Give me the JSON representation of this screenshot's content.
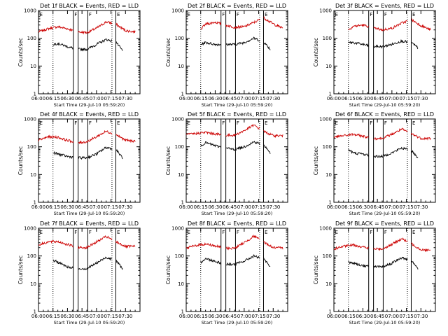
{
  "chart_data": [
    {
      "type": "line",
      "title": "Det 1f BLACK = Events, RED = LLD",
      "xlabel": "Start Time (29-Jul-10 05:59:20)",
      "ylabel": "Counts/sec",
      "y_scale": "log",
      "ylim": [
        1,
        1000
      ],
      "xlim": [
        "06:00",
        "07:45"
      ],
      "x_ticks": [
        "06:00",
        "06:15",
        "06:30",
        "06:45",
        "07:00",
        "07:15",
        "07:30"
      ],
      "y_ticks": [
        "1",
        "10",
        "100",
        "1000"
      ],
      "flags": [
        "E",
        "F",
        "F",
        "E"
      ],
      "vertical_markers": [
        "06:15",
        "06:36",
        "06:41",
        "06:51",
        "07:16",
        "07:20"
      ],
      "dotted_markers": [
        "06:15",
        "07:16"
      ],
      "series": [
        {
          "name": "LLD",
          "color": "#cc0000",
          "x": [
            "06:00",
            "06:10",
            "06:20",
            "06:30",
            "06:40",
            "06:50",
            "07:00",
            "07:10",
            "07:20",
            "07:30",
            "07:40"
          ],
          "y": [
            170,
            220,
            260,
            220,
            170,
            160,
            230,
            390,
            320,
            190,
            170
          ]
        },
        {
          "name": "Events",
          "color": "#000000",
          "x": [
            "06:15",
            "06:20",
            "06:30",
            "06:40",
            "06:50",
            "07:00",
            "07:10",
            "07:20",
            "07:27"
          ],
          "y": [
            60,
            65,
            50,
            40,
            40,
            60,
            90,
            75,
            35
          ]
        }
      ]
    },
    {
      "type": "line",
      "title": "Det 2f BLACK = Events, RED = LLD",
      "xlabel": "Start Time (29-Jul-10 05:59:20)",
      "ylabel": "Counts/sec",
      "y_scale": "log",
      "ylim": [
        1,
        1000
      ],
      "xlim": [
        "06:00",
        "07:45"
      ],
      "x_ticks": [
        "06:00",
        "06:15",
        "06:30",
        "06:45",
        "07:00",
        "07:15",
        "07:30"
      ],
      "y_ticks": [
        "1",
        "10",
        "100",
        "1000"
      ],
      "flags": [
        "E",
        "F",
        "F",
        "E"
      ],
      "vertical_markers": [
        "06:15",
        "06:36",
        "06:41",
        "06:51",
        "07:16",
        "07:20"
      ],
      "dotted_markers": [
        "06:15",
        "07:16"
      ],
      "series": [
        {
          "name": "LLD",
          "color": "#cc0000",
          "x": [
            "06:15",
            "06:20",
            "06:30",
            "06:40",
            "06:50",
            "07:00",
            "07:10",
            "07:20",
            "07:30",
            "07:40"
          ],
          "y": [
            210,
            320,
            380,
            300,
            250,
            260,
            370,
            550,
            330,
            230
          ]
        },
        {
          "name": "Events",
          "color": "#000000",
          "x": [
            "06:15",
            "06:20",
            "06:30",
            "06:40",
            "06:50",
            "07:00",
            "07:10",
            "07:20",
            "07:27"
          ],
          "y": [
            60,
            70,
            60,
            60,
            60,
            70,
            100,
            75,
            40
          ]
        }
      ]
    },
    {
      "type": "line",
      "title": "Det 3f BLACK = Events, RED = LLD",
      "xlabel": "Start Time (29-Jul-10 05:59:20)",
      "ylabel": "Counts/sec",
      "y_scale": "log",
      "ylim": [
        1,
        1000
      ],
      "xlim": [
        "06:00",
        "07:45"
      ],
      "x_ticks": [
        "06:00",
        "06:15",
        "06:30",
        "06:45",
        "07:00",
        "07:15",
        "07:30"
      ],
      "y_ticks": [
        "1",
        "10",
        "100",
        "1000"
      ],
      "flags": [
        "E",
        "F",
        "F",
        "E"
      ],
      "vertical_markers": [
        "06:15",
        "06:36",
        "06:41",
        "06:51",
        "07:16",
        "07:20"
      ],
      "dotted_markers": [
        "06:15",
        "07:16"
      ],
      "series": [
        {
          "name": "LLD",
          "color": "#cc0000",
          "x": [
            "06:15",
            "06:20",
            "06:30",
            "06:40",
            "06:50",
            "07:00",
            "07:10",
            "07:20",
            "07:30",
            "07:40"
          ],
          "y": [
            200,
            270,
            300,
            240,
            200,
            230,
            350,
            470,
            290,
            200
          ]
        },
        {
          "name": "Events",
          "color": "#000000",
          "x": [
            "06:15",
            "06:20",
            "06:30",
            "06:40",
            "06:50",
            "07:00",
            "07:10",
            "07:20",
            "07:27"
          ],
          "y": [
            70,
            70,
            60,
            50,
            50,
            60,
            80,
            70,
            45
          ]
        }
      ]
    },
    {
      "type": "line",
      "title": "Det 4f BLACK = Events, RED = LLD",
      "xlabel": "Start Time (29-Jul-10 05:59:20)",
      "ylabel": "Counts/sec",
      "y_scale": "log",
      "ylim": [
        1,
        1000
      ],
      "xlim": [
        "06:00",
        "07:45"
      ],
      "x_ticks": [
        "06:00",
        "06:15",
        "06:30",
        "06:45",
        "07:00",
        "07:15",
        "07:30"
      ],
      "y_ticks": [
        "1",
        "10",
        "100",
        "1000"
      ],
      "flags": [
        "E",
        "F",
        "F",
        "E"
      ],
      "vertical_markers": [
        "06:15",
        "06:36",
        "06:41",
        "06:51",
        "07:16",
        "07:20"
      ],
      "dotted_markers": [
        "06:15",
        "07:16"
      ],
      "series": [
        {
          "name": "LLD",
          "color": "#cc0000",
          "x": [
            "06:00",
            "06:10",
            "06:20",
            "06:30",
            "06:40",
            "06:50",
            "07:00",
            "07:10",
            "07:20",
            "07:30",
            "07:40"
          ],
          "y": [
            170,
            230,
            220,
            170,
            140,
            150,
            230,
            360,
            280,
            170,
            160
          ]
        },
        {
          "name": "Events",
          "color": "#000000",
          "x": [
            "06:15",
            "06:20",
            "06:30",
            "06:40",
            "06:50",
            "07:00",
            "07:10",
            "07:20",
            "07:27"
          ],
          "y": [
            60,
            55,
            45,
            40,
            40,
            55,
            95,
            80,
            40
          ]
        }
      ]
    },
    {
      "type": "line",
      "title": "Det 5f BLACK = Events, RED = LLD",
      "xlabel": "Start Time (29-Jul-10 05:59:20)",
      "ylabel": "Counts/sec",
      "y_scale": "log",
      "ylim": [
        1,
        1000
      ],
      "xlim": [
        "06:00",
        "07:45"
      ],
      "x_ticks": [
        "06:00",
        "06:15",
        "06:30",
        "06:45",
        "07:00",
        "07:15",
        "07:30"
      ],
      "y_ticks": [
        "1",
        "10",
        "100",
        "1000"
      ],
      "flags": [
        "E",
        "F",
        "F",
        "E"
      ],
      "vertical_markers": [
        "06:15",
        "06:36",
        "06:41",
        "06:51",
        "07:16",
        "07:20"
      ],
      "dotted_markers": [
        "06:15",
        "07:16"
      ],
      "series": [
        {
          "name": "LLD",
          "color": "#cc0000",
          "x": [
            "06:00",
            "06:10",
            "06:20",
            "06:30",
            "06:40",
            "06:50",
            "07:00",
            "07:10",
            "07:20",
            "07:30",
            "07:40"
          ],
          "y": [
            270,
            300,
            330,
            290,
            260,
            260,
            380,
            600,
            360,
            250,
            250
          ]
        },
        {
          "name": "Events",
          "color": "#000000",
          "x": [
            "06:15",
            "06:20",
            "06:30",
            "06:40",
            "06:50",
            "07:00",
            "07:10",
            "07:20",
            "07:27"
          ],
          "y": [
            110,
            140,
            110,
            90,
            80,
            100,
            150,
            120,
            60
          ]
        }
      ]
    },
    {
      "type": "line",
      "title": "Det 6f BLACK = Events, RED = LLD",
      "xlabel": "Start Time (29-Jul-10 05:59:20)",
      "ylabel": "Counts/sec",
      "y_scale": "log",
      "ylim": [
        1,
        1000
      ],
      "xlim": [
        "06:00",
        "07:45"
      ],
      "x_ticks": [
        "06:00",
        "06:15",
        "06:30",
        "06:45",
        "07:00",
        "07:15",
        "07:30"
      ],
      "y_ticks": [
        "1",
        "10",
        "100",
        "1000"
      ],
      "flags": [
        "E",
        "F",
        "F",
        "E"
      ],
      "vertical_markers": [
        "06:15",
        "06:36",
        "06:41",
        "06:51",
        "07:16",
        "07:20"
      ],
      "dotted_markers": [
        "06:15",
        "07:16"
      ],
      "series": [
        {
          "name": "LLD",
          "color": "#cc0000",
          "x": [
            "06:00",
            "06:10",
            "06:20",
            "06:30",
            "06:40",
            "06:50",
            "07:00",
            "07:10",
            "07:20",
            "07:30",
            "07:40"
          ],
          "y": [
            220,
            250,
            280,
            240,
            200,
            200,
            280,
            430,
            300,
            200,
            200
          ]
        },
        {
          "name": "Events",
          "color": "#000000",
          "x": [
            "06:15",
            "06:20",
            "06:30",
            "06:40",
            "06:50",
            "07:00",
            "07:10",
            "07:20",
            "07:27"
          ],
          "y": [
            80,
            60,
            55,
            45,
            45,
            60,
            90,
            75,
            40
          ]
        }
      ]
    },
    {
      "type": "line",
      "title": "Det 7f BLACK = Events, RED = LLD",
      "xlabel": "Start Time (29-Jul-10 05:59:20)",
      "ylabel": "Counts/sec",
      "y_scale": "log",
      "ylim": [
        1,
        1000
      ],
      "xlim": [
        "06:00",
        "07:45"
      ],
      "x_ticks": [
        "06:00",
        "06:15",
        "06:30",
        "06:45",
        "07:00",
        "07:15",
        "07:30"
      ],
      "y_ticks": [
        "1",
        "10",
        "100",
        "1000"
      ],
      "flags": [
        "E",
        "F",
        "F",
        "E"
      ],
      "vertical_markers": [
        "06:15",
        "06:36",
        "06:41",
        "06:51",
        "07:16",
        "07:20"
      ],
      "dotted_markers": [
        "06:15",
        "07:16"
      ],
      "series": [
        {
          "name": "LLD",
          "color": "#cc0000",
          "x": [
            "06:00",
            "06:10",
            "06:20",
            "06:30",
            "06:40",
            "06:50",
            "07:00",
            "07:10",
            "07:20",
            "07:30",
            "07:40"
          ],
          "y": [
            250,
            320,
            330,
            260,
            200,
            200,
            320,
            500,
            330,
            220,
            220
          ]
        },
        {
          "name": "Events",
          "color": "#000000",
          "x": [
            "06:15",
            "06:20",
            "06:30",
            "06:40",
            "06:50",
            "07:00",
            "07:10",
            "07:20",
            "07:27"
          ],
          "y": [
            70,
            60,
            40,
            35,
            35,
            55,
            90,
            70,
            35
          ]
        }
      ]
    },
    {
      "type": "line",
      "title": "Det 8f BLACK = Events, RED = LLD",
      "xlabel": "Start Time (29-Jul-10 05:59:20)",
      "ylabel": "Counts/sec",
      "y_scale": "log",
      "ylim": [
        1,
        1000
      ],
      "xlim": [
        "06:00",
        "07:45"
      ],
      "x_ticks": [
        "06:00",
        "06:15",
        "06:30",
        "06:45",
        "07:00",
        "07:15",
        "07:30"
      ],
      "y_ticks": [
        "1",
        "10",
        "100",
        "1000"
      ],
      "flags": [
        "E",
        "F",
        "F",
        "E"
      ],
      "vertical_markers": [
        "06:15",
        "06:36",
        "06:41",
        "06:51",
        "07:16",
        "07:20"
      ],
      "dotted_markers": [
        "06:15",
        "07:16"
      ],
      "series": [
        {
          "name": "LLD",
          "color": "#cc0000",
          "x": [
            "06:00",
            "06:10",
            "06:20",
            "06:30",
            "06:40",
            "06:50",
            "07:00",
            "07:10",
            "07:20",
            "07:30",
            "07:40"
          ],
          "y": [
            190,
            240,
            270,
            230,
            190,
            190,
            300,
            520,
            320,
            200,
            190
          ]
        },
        {
          "name": "Events",
          "color": "#000000",
          "x": [
            "06:15",
            "06:20",
            "06:30",
            "06:40",
            "06:50",
            "07:00",
            "07:10",
            "07:20",
            "07:27"
          ],
          "y": [
            60,
            80,
            65,
            50,
            50,
            65,
            100,
            80,
            40
          ]
        }
      ]
    },
    {
      "type": "line",
      "title": "Det 9f BLACK = Events, RED = LLD",
      "xlabel": "Start Time (29-Jul-10 05:59:20)",
      "ylabel": "Counts/sec",
      "y_scale": "log",
      "ylim": [
        1,
        1000
      ],
      "xlim": [
        "06:00",
        "07:45"
      ],
      "x_ticks": [
        "06:00",
        "06:15",
        "06:30",
        "06:45",
        "07:00",
        "07:15",
        "07:30"
      ],
      "y_ticks": [
        "1",
        "10",
        "100",
        "1000"
      ],
      "flags": [
        "E",
        "F",
        "F",
        "E"
      ],
      "vertical_markers": [
        "06:15",
        "06:36",
        "06:41",
        "06:51",
        "07:16",
        "07:20"
      ],
      "dotted_markers": [
        "06:15",
        "07:16"
      ],
      "series": [
        {
          "name": "LLD",
          "color": "#cc0000",
          "x": [
            "06:00",
            "06:10",
            "06:20",
            "06:30",
            "06:40",
            "06:50",
            "07:00",
            "07:10",
            "07:20",
            "07:30",
            "07:40"
          ],
          "y": [
            180,
            220,
            250,
            210,
            180,
            180,
            260,
            420,
            280,
            170,
            160
          ]
        },
        {
          "name": "Events",
          "color": "#000000",
          "x": [
            "06:15",
            "06:20",
            "06:30",
            "06:40",
            "06:50",
            "07:00",
            "07:10",
            "07:20",
            "07:27"
          ],
          "y": [
            60,
            55,
            45,
            40,
            40,
            55,
            85,
            70,
            35
          ]
        }
      ]
    }
  ]
}
